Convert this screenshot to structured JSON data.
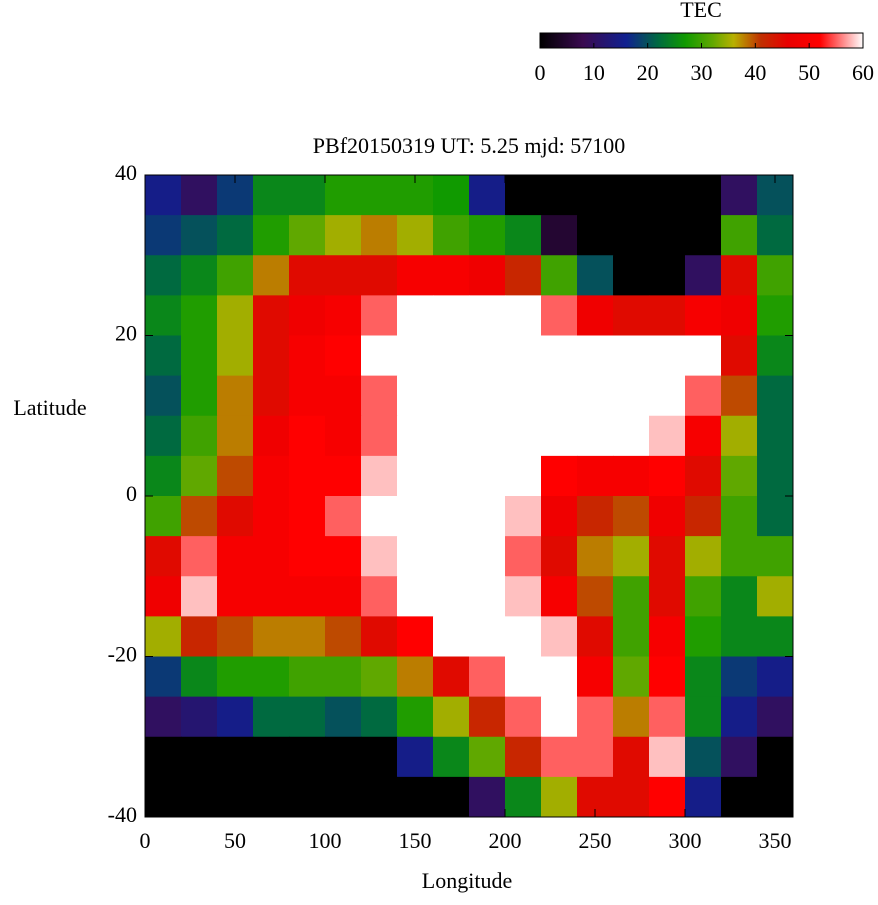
{
  "chart_data": {
    "type": "heatmap",
    "title": "PBf20150319  UT: 5.25  mjd: 57100",
    "xlabel": "Longitude",
    "ylabel": "Latitude",
    "xlim": [
      0,
      360
    ],
    "ylim": [
      -40,
      40
    ],
    "xticks": [
      0,
      50,
      100,
      150,
      200,
      250,
      300,
      350
    ],
    "yticks": [
      -40,
      -20,
      0,
      20,
      40
    ],
    "x": [
      10,
      30,
      50,
      70,
      90,
      110,
      130,
      150,
      170,
      190,
      210,
      230,
      250,
      270,
      290,
      310,
      330,
      350
    ],
    "y": [
      37.5,
      32.5,
      27.5,
      22.5,
      17.5,
      12.5,
      7.5,
      2.5,
      -2.5,
      -7.5,
      -12.5,
      -17.5,
      -22.5,
      -27.5,
      -32.5,
      -37.5
    ],
    "z": [
      [
        15,
        10,
        18,
        25,
        25,
        28,
        28,
        28,
        27,
        15,
        0,
        0,
        0,
        0,
        0,
        0,
        10,
        20
      ],
      [
        18,
        20,
        22,
        28,
        32,
        35,
        38,
        35,
        30,
        28,
        25,
        5,
        0,
        0,
        0,
        0,
        30,
        22
      ],
      [
        22,
        25,
        30,
        38,
        45,
        45,
        45,
        50,
        50,
        48,
        42,
        30,
        20,
        0,
        0,
        10,
        45,
        30
      ],
      [
        25,
        28,
        35,
        45,
        48,
        50,
        55,
        60,
        60,
        60,
        60,
        55,
        48,
        45,
        45,
        50,
        48,
        28
      ],
      [
        22,
        28,
        35,
        45,
        50,
        52,
        60,
        60,
        60,
        60,
        60,
        60,
        60,
        60,
        60,
        60,
        45,
        25
      ],
      [
        20,
        28,
        38,
        45,
        50,
        50,
        55,
        60,
        60,
        60,
        60,
        60,
        60,
        60,
        60,
        55,
        40,
        22
      ],
      [
        22,
        30,
        38,
        48,
        52,
        50,
        55,
        60,
        60,
        60,
        60,
        60,
        60,
        60,
        58,
        50,
        35,
        22
      ],
      [
        25,
        32,
        40,
        50,
        52,
        52,
        58,
        60,
        60,
        60,
        60,
        52,
        50,
        50,
        52,
        45,
        32,
        22
      ],
      [
        30,
        40,
        45,
        50,
        52,
        55,
        60,
        60,
        60,
        60,
        58,
        48,
        42,
        40,
        48,
        42,
        30,
        22
      ],
      [
        45,
        55,
        50,
        50,
        52,
        52,
        58,
        60,
        60,
        60,
        55,
        45,
        38,
        35,
        45,
        35,
        30,
        30
      ],
      [
        48,
        58,
        50,
        50,
        50,
        50,
        55,
        60,
        60,
        60,
        58,
        50,
        40,
        30,
        45,
        30,
        25,
        35
      ],
      [
        35,
        42,
        40,
        38,
        38,
        40,
        45,
        52,
        60,
        60,
        60,
        58,
        45,
        30,
        50,
        28,
        25,
        25
      ],
      [
        18,
        25,
        28,
        28,
        30,
        30,
        32,
        38,
        45,
        55,
        60,
        60,
        50,
        32,
        52,
        25,
        18,
        15
      ],
      [
        10,
        12,
        15,
        22,
        22,
        20,
        22,
        28,
        35,
        42,
        55,
        60,
        55,
        38,
        55,
        25,
        15,
        10
      ],
      [
        0,
        0,
        0,
        0,
        0,
        0,
        0,
        15,
        25,
        32,
        42,
        55,
        55,
        45,
        58,
        20,
        10,
        0
      ],
      [
        0,
        0,
        0,
        0,
        0,
        0,
        0,
        0,
        0,
        10,
        25,
        35,
        45,
        45,
        52,
        15,
        0,
        0
      ]
    ],
    "colorbar": {
      "label": "TEC",
      "lim": [
        0,
        60
      ],
      "ticks": [
        0,
        10,
        20,
        30,
        40,
        50,
        60
      ]
    },
    "colorscale": [
      [
        0,
        "#000000"
      ],
      [
        8,
        "#3a0a50"
      ],
      [
        16,
        "#102090"
      ],
      [
        22,
        "#006a40"
      ],
      [
        27,
        "#109a00"
      ],
      [
        32,
        "#60a800"
      ],
      [
        36,
        "#b8b000"
      ],
      [
        41,
        "#c03000"
      ],
      [
        46,
        "#e80000"
      ],
      [
        52,
        "#ff0000"
      ],
      [
        56,
        "#ff8080"
      ],
      [
        60,
        "#ffffff"
      ]
    ]
  }
}
